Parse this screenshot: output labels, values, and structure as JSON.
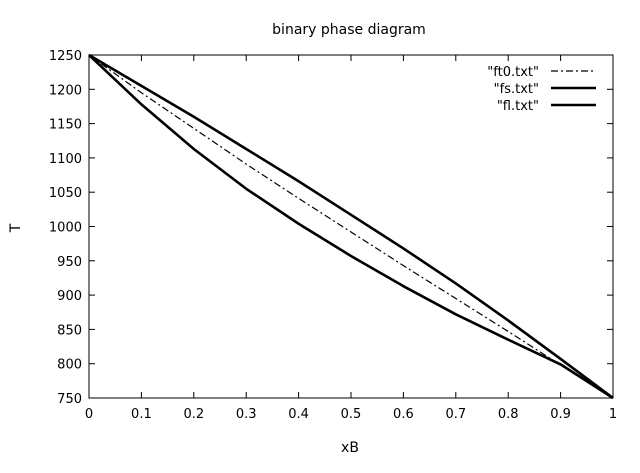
{
  "chart_data": {
    "type": "line",
    "title": "binary phase diagram",
    "xlabel": "xB",
    "ylabel": "T",
    "xlim": [
      0,
      1
    ],
    "ylim": [
      750,
      1250
    ],
    "x_ticks": [
      0,
      0.1,
      0.2,
      0.3,
      0.4,
      0.5,
      0.6,
      0.7,
      0.8,
      0.9,
      1
    ],
    "x_tick_labels": [
      "0",
      "0.1",
      "0.2",
      "0.3",
      "0.4",
      "0.5",
      "0.6",
      "0.7",
      "0.8",
      "0.9",
      "1"
    ],
    "y_ticks": [
      750,
      800,
      850,
      900,
      950,
      1000,
      1050,
      1100,
      1150,
      1200,
      1250
    ],
    "y_tick_labels": [
      "750",
      "800",
      "850",
      "900",
      "950",
      "1000",
      "1050",
      "1100",
      "1150",
      "1200",
      "1250"
    ],
    "grid": false,
    "legend_position": "top-right",
    "series": [
      {
        "name": "\"ft0.txt\"",
        "style": "dash-dot",
        "x": [
          0,
          0.1,
          0.2,
          0.3,
          0.4,
          0.5,
          0.6,
          0.7,
          0.8,
          0.9,
          1
        ],
        "y": [
          1250,
          1195,
          1143,
          1091,
          1041,
          992,
          943,
          895,
          847,
          798,
          750
        ]
      },
      {
        "name": "\"fs.txt\"",
        "style": "solid",
        "x": [
          0,
          0.1,
          0.2,
          0.3,
          0.4,
          0.5,
          0.6,
          0.7,
          0.8,
          0.9,
          1
        ],
        "y": [
          1250,
          1205,
          1160,
          1113,
          1066,
          1017,
          968,
          917,
          863,
          807,
          750
        ]
      },
      {
        "name": "\"fl.txt\"",
        "style": "solid",
        "x": [
          0,
          0.1,
          0.2,
          0.3,
          0.4,
          0.5,
          0.6,
          0.7,
          0.8,
          0.9,
          1
        ],
        "y": [
          1250,
          1178,
          1113,
          1055,
          1004,
          957,
          913,
          872,
          835,
          799,
          750
        ]
      }
    ]
  },
  "colors": {
    "axis": "#000000",
    "series": "#000000"
  }
}
